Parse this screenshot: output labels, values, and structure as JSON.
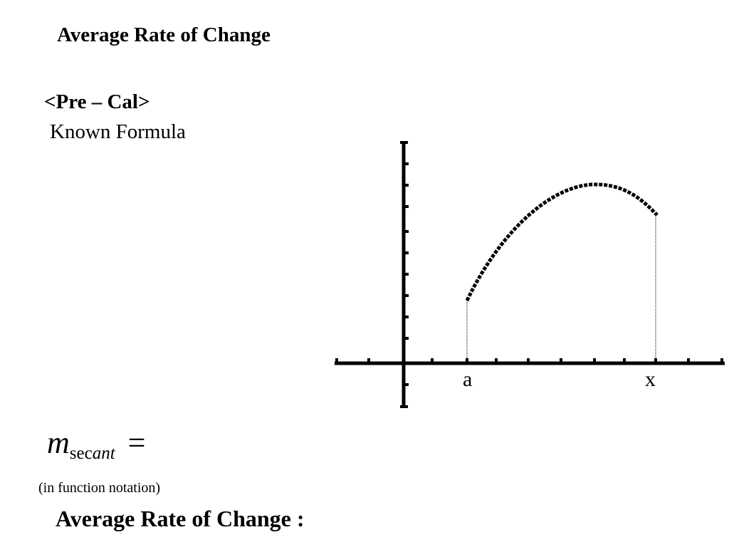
{
  "heading": "Average Rate of Change",
  "course": "<Pre – Cal>",
  "subheading": "Known Formula",
  "formula": {
    "m": "m",
    "sub_sec": "sec",
    "sub_ant": "ant",
    "equals": "="
  },
  "notation_note": "(in function notation)",
  "bottom_heading": "Average Rate of Change :",
  "graph": {
    "label_a": "a",
    "label_x": "x",
    "curve": "concave-down arc rising from point a to a peak, then dropping to point x"
  }
}
